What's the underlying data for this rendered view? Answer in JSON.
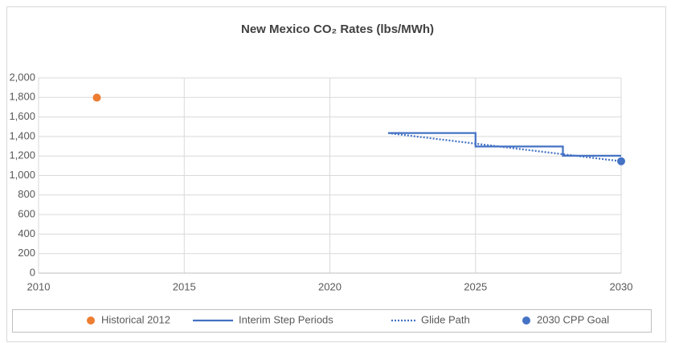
{
  "chart_data": {
    "type": "line",
    "title": "New Mexico CO₂ Rates (lbs/MWh)",
    "xlim": [
      2010,
      2030
    ],
    "xticks": [
      2010,
      2015,
      2020,
      2025,
      2030
    ],
    "ylim": [
      0,
      2000
    ],
    "yticks": [
      0,
      200,
      400,
      600,
      800,
      {
        "value": 1000,
        "label": "1,000"
      },
      {
        "value": 1200,
        "label": "1,200"
      },
      {
        "value": 1400,
        "label": "1,400"
      },
      {
        "value": 1600,
        "label": "1,600"
      },
      {
        "value": 1800,
        "label": "1,800"
      },
      {
        "value": 2000,
        "label": "2,000"
      }
    ],
    "grid": true,
    "legend": "bottom",
    "series": [
      {
        "name": "Historical 2012",
        "color": "#ed7d31",
        "style": "marker",
        "x": [
          2012
        ],
        "values": [
          1798
        ]
      },
      {
        "name": "Interim Step Periods",
        "color": "#4472c4",
        "style": "solid",
        "x": [
          2022,
          2025,
          2025,
          2028,
          2028,
          2030
        ],
        "values": [
          1435,
          1435,
          1297,
          1297,
          1203,
          1203
        ]
      },
      {
        "name": "Glide Path",
        "color": "#4472c4",
        "style": "dotted",
        "x": [
          2022,
          2030
        ],
        "values": [
          1435,
          1146
        ]
      },
      {
        "name": "2030 CPP Goal",
        "color": "#4472c4",
        "style": "marker",
        "x": [
          2030
        ],
        "values": [
          1146
        ]
      }
    ]
  }
}
